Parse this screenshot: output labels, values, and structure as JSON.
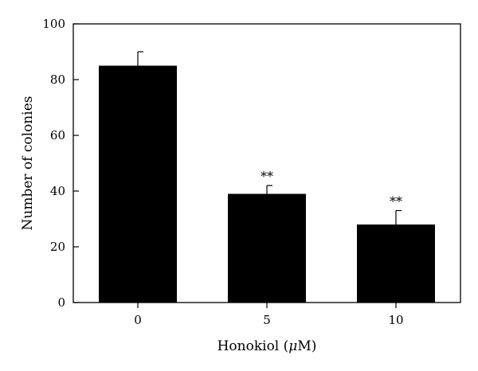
{
  "chart_data": {
    "type": "bar",
    "categories": [
      "0",
      "5",
      "10"
    ],
    "values": [
      85,
      39,
      28
    ],
    "errors": [
      5,
      3,
      5
    ],
    "annotations": [
      "",
      "**",
      "**"
    ],
    "xlabel_prefix": "Honokiol (",
    "xlabel_unit": "μ",
    "xlabel_suffix": "M)",
    "ylabel": "Number of colonies",
    "ylim": [
      0,
      100
    ],
    "yticks": [
      0,
      20,
      40,
      60,
      80,
      100
    ],
    "grid": false,
    "bar_color": "#000000"
  }
}
